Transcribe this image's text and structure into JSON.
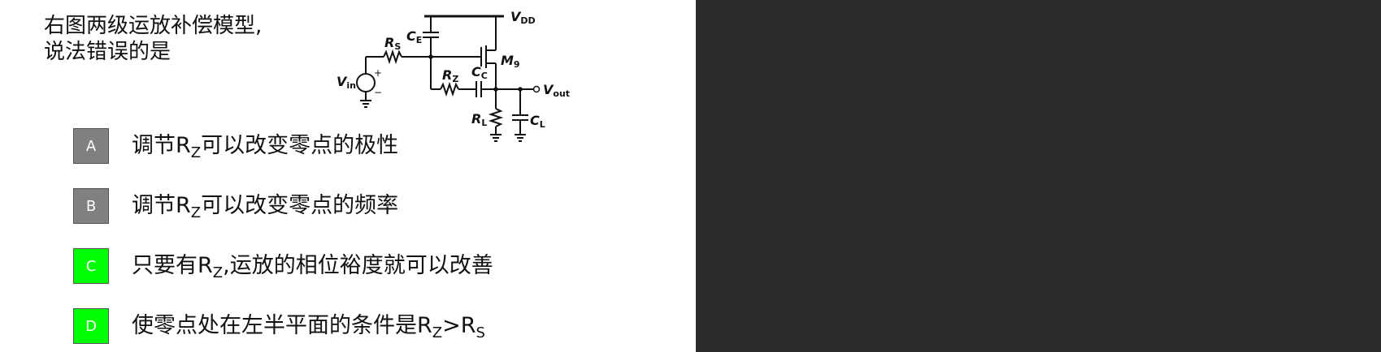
{
  "colors": {
    "right_pane_bg": "#2a2b2d",
    "badge_default": "#808080",
    "badge_highlight": "#00ff00"
  },
  "question": {
    "line1": "右图两级运放补偿模型,",
    "line2": "说法错误的是"
  },
  "circuit": {
    "vdd": {
      "main": "V",
      "sub": "DD"
    },
    "ce": {
      "main": "C",
      "sub": "E"
    },
    "rs": {
      "main": "R",
      "sub": "S"
    },
    "m9": {
      "main": "M",
      "sub": "9"
    },
    "vin": {
      "main": "V",
      "sub": "in"
    },
    "plus": "+",
    "minus": "−",
    "rz": {
      "main": "R",
      "sub": "Z"
    },
    "cc": {
      "main": "C",
      "sub": "C"
    },
    "vout": {
      "main": "V",
      "sub": "out"
    },
    "rl": {
      "main": "R",
      "sub": "L"
    },
    "cl": {
      "main": "C",
      "sub": "L"
    }
  },
  "options": [
    {
      "letter": "A",
      "state": "default",
      "pre": "调节R",
      "sub": "Z",
      "post": "可以改变零点的极性"
    },
    {
      "letter": "B",
      "state": "default",
      "pre": "调节R",
      "sub": "Z",
      "post": "可以改变零点的频率"
    },
    {
      "letter": "C",
      "state": "highlight",
      "pre": "只要有R",
      "sub": "Z",
      "post": ",运放的相位裕度就可以改善"
    },
    {
      "letter": "D",
      "state": "highlight",
      "pre": "使零点处在左半平面的条件是R",
      "sub": "Z",
      "mid": ">R",
      "sub2": "S"
    }
  ]
}
